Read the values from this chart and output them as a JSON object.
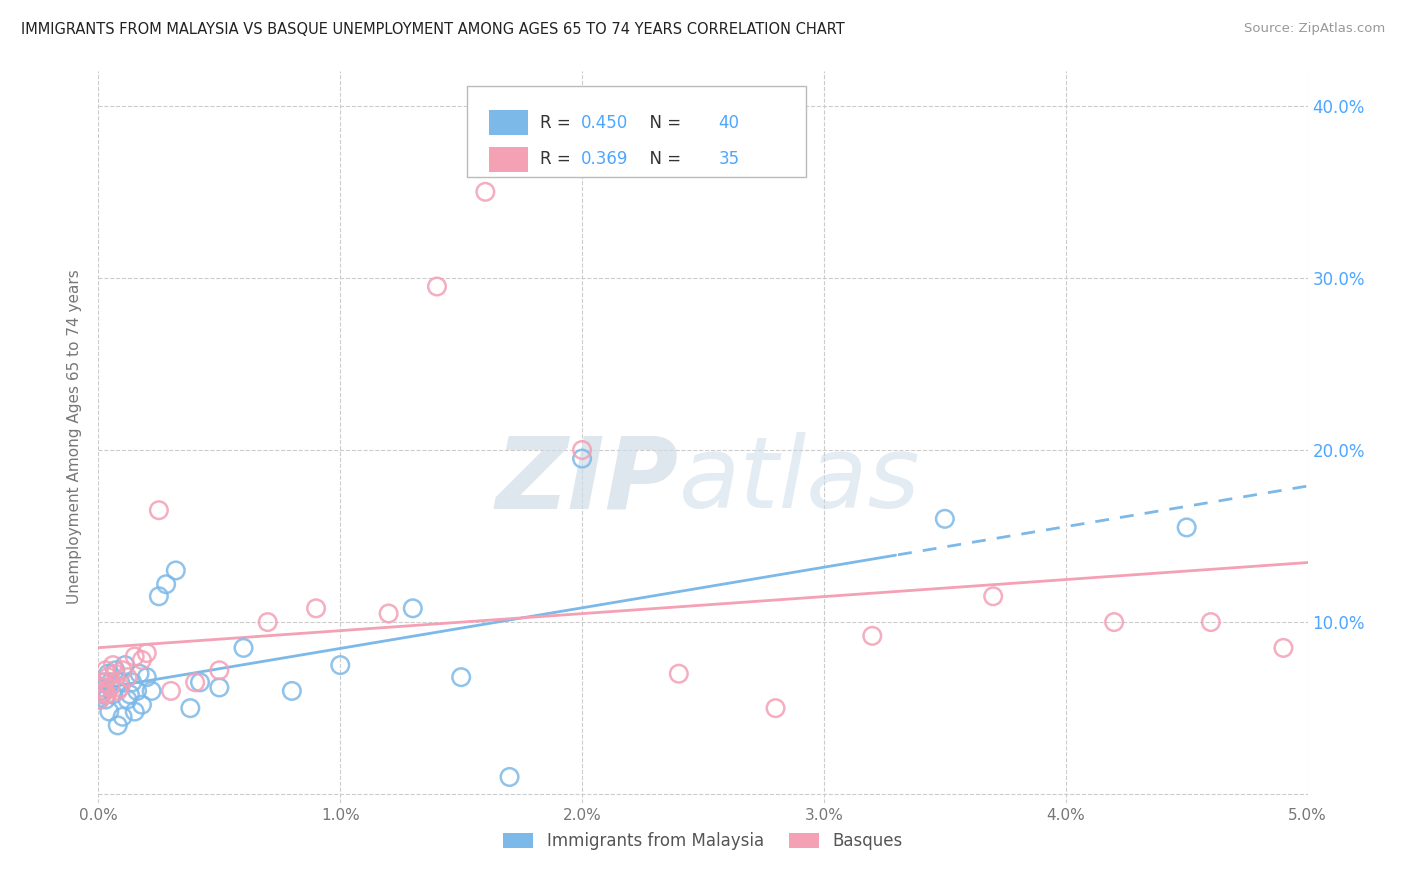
{
  "title": "IMMIGRANTS FROM MALAYSIA VS BASQUE UNEMPLOYMENT AMONG AGES 65 TO 74 YEARS CORRELATION CHART",
  "source": "Source: ZipAtlas.com",
  "ylabel": "Unemployment Among Ages 65 to 74 years",
  "xlim": [
    0.0,
    0.05
  ],
  "ylim": [
    -0.005,
    0.42
  ],
  "xticks": [
    0.0,
    0.01,
    0.02,
    0.03,
    0.04,
    0.05
  ],
  "yticks": [
    0.0,
    0.1,
    0.2,
    0.3,
    0.4
  ],
  "xtick_labels": [
    "0.0%",
    "1.0%",
    "2.0%",
    "3.0%",
    "4.0%",
    "5.0%"
  ],
  "ytick_labels": [
    "",
    "10.0%",
    "20.0%",
    "30.0%",
    "40.0%"
  ],
  "color_malaysia": "#7cb9e8",
  "color_basque": "#f4a0b5",
  "R_malaysia": 0.45,
  "N_malaysia": 40,
  "R_basque": 0.369,
  "N_basque": 35,
  "malaysia_x": [
    5e-05,
    0.0001,
    0.00015,
    0.0002,
    0.00025,
    0.0003,
    0.00035,
    0.0004,
    0.00045,
    0.0005,
    0.0006,
    0.0007,
    0.0008,
    0.0009,
    0.001,
    0.0011,
    0.0012,
    0.0013,
    0.0014,
    0.0015,
    0.0016,
    0.0017,
    0.0018,
    0.002,
    0.0022,
    0.0025,
    0.0028,
    0.0032,
    0.0038,
    0.0042,
    0.005,
    0.006,
    0.008,
    0.01,
    0.013,
    0.015,
    0.017,
    0.02,
    0.035,
    0.045
  ],
  "malaysia_y": [
    0.055,
    0.06,
    0.058,
    0.062,
    0.065,
    0.055,
    0.058,
    0.07,
    0.048,
    0.065,
    0.058,
    0.072,
    0.04,
    0.065,
    0.045,
    0.075,
    0.055,
    0.058,
    0.065,
    0.048,
    0.06,
    0.07,
    0.052,
    0.068,
    0.06,
    0.115,
    0.122,
    0.13,
    0.05,
    0.065,
    0.062,
    0.085,
    0.06,
    0.075,
    0.108,
    0.068,
    0.01,
    0.195,
    0.16,
    0.155
  ],
  "basque_x": [
    5e-05,
    0.0001,
    0.00015,
    0.0002,
    0.00025,
    0.0003,
    0.00035,
    0.0004,
    0.0005,
    0.0006,
    0.0007,
    0.0008,
    0.0009,
    0.001,
    0.0012,
    0.0015,
    0.0018,
    0.002,
    0.0025,
    0.003,
    0.004,
    0.005,
    0.007,
    0.009,
    0.012,
    0.014,
    0.016,
    0.02,
    0.024,
    0.028,
    0.032,
    0.037,
    0.042,
    0.046,
    0.049
  ],
  "basque_y": [
    0.055,
    0.062,
    0.058,
    0.065,
    0.06,
    0.072,
    0.058,
    0.068,
    0.062,
    0.075,
    0.07,
    0.06,
    0.062,
    0.072,
    0.068,
    0.08,
    0.078,
    0.082,
    0.165,
    0.06,
    0.065,
    0.072,
    0.1,
    0.108,
    0.105,
    0.295,
    0.35,
    0.2,
    0.07,
    0.05,
    0.092,
    0.115,
    0.1,
    0.1,
    0.085
  ],
  "trend_split_x": 0.033,
  "watermark_zip": "ZIP",
  "watermark_atlas": "atlas",
  "background_color": "#ffffff",
  "grid_color": "#cccccc",
  "title_color": "#222222",
  "right_tick_color": "#4da6ff",
  "legend_label_color": "#333333"
}
